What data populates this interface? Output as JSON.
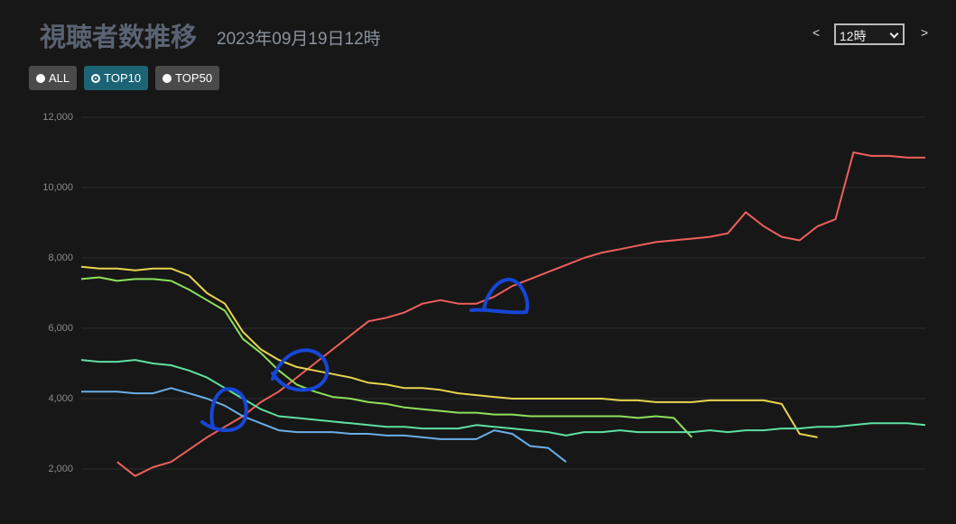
{
  "header": {
    "title": "視聴者数推移",
    "date": "2023年09月19日12時",
    "prev": "<",
    "next": ">",
    "hour_select": "12時"
  },
  "filters": [
    {
      "label": "ALL",
      "selected": false
    },
    {
      "label": "TOP10",
      "selected": true
    },
    {
      "label": "TOP50",
      "selected": false
    }
  ],
  "chart_data": {
    "type": "line",
    "ylim": [
      1000,
      12000
    ],
    "yticks": [
      {
        "value": 2000,
        "label": "2,000"
      },
      {
        "value": 4000,
        "label": "4,000"
      },
      {
        "value": 6000,
        "label": "6,000"
      },
      {
        "value": 8000,
        "label": "8,000"
      },
      {
        "value": 10000,
        "label": "10,000"
      },
      {
        "value": 12000,
        "label": "12,000"
      }
    ],
    "grid": true,
    "series": [
      {
        "color": "#ee5f5b",
        "values": [
          null,
          null,
          2200,
          1800,
          2050,
          2200,
          2550,
          2900,
          3200,
          3500,
          3900,
          4200,
          4600,
          5000,
          5400,
          5800,
          6200,
          6300,
          6450,
          6700,
          6800,
          6700,
          6700,
          6900,
          7200,
          7400,
          7600,
          7800,
          8000,
          8150,
          8250,
          8350,
          8450,
          8500,
          8550,
          8600,
          8700,
          9300,
          8900,
          8600,
          8500,
          8900,
          9100,
          11000,
          10900,
          10900,
          10850,
          10850
        ]
      },
      {
        "color": "#e8d44d",
        "values": [
          7750,
          7700,
          7700,
          7650,
          7700,
          7700,
          7500,
          7000,
          6700,
          5900,
          5400,
          5100,
          4900,
          4800,
          4700,
          4600,
          4450,
          4400,
          4300,
          4300,
          4250,
          4150,
          4100,
          4050,
          4000,
          4000,
          4000,
          4000,
          4000,
          4000,
          3950,
          3950,
          3900,
          3900,
          3900,
          3950,
          3950,
          3950,
          3950,
          3850,
          3000,
          2900,
          null,
          null,
          null,
          null,
          null,
          null
        ]
      },
      {
        "color": "#8de05a",
        "values": [
          7400,
          7450,
          7350,
          7400,
          7400,
          7350,
          7100,
          6800,
          6500,
          5700,
          5300,
          4800,
          4400,
          4200,
          4050,
          4000,
          3900,
          3850,
          3750,
          3700,
          3650,
          3600,
          3600,
          3550,
          3550,
          3500,
          3500,
          3500,
          3500,
          3500,
          3500,
          3450,
          3500,
          3450,
          2900,
          null,
          null,
          null,
          null,
          null,
          null,
          null,
          null,
          null,
          null,
          null,
          null,
          null
        ]
      },
      {
        "color": "#5ee0a0",
        "values": [
          5100,
          5050,
          5050,
          5100,
          5000,
          4950,
          4800,
          4600,
          4300,
          4000,
          3700,
          3500,
          3450,
          3400,
          3350,
          3300,
          3250,
          3200,
          3200,
          3150,
          3150,
          3150,
          3250,
          3200,
          3150,
          3100,
          3050,
          2950,
          3050,
          3050,
          3100,
          3050,
          3050,
          3050,
          3050,
          3100,
          3050,
          3100,
          3100,
          3150,
          3150,
          3200,
          3200,
          3250,
          3300,
          3300,
          3300,
          3250
        ]
      },
      {
        "color": "#6aaee8",
        "values": [
          4200,
          4200,
          4200,
          4150,
          4150,
          4300,
          4150,
          4000,
          3800,
          3500,
          3300,
          3100,
          3050,
          3050,
          3050,
          3000,
          3000,
          2950,
          2950,
          2900,
          2850,
          2850,
          2850,
          3100,
          3000,
          2650,
          2600,
          2200,
          null,
          null,
          null,
          null,
          null,
          null,
          null,
          null,
          null,
          null,
          null,
          null,
          null,
          null,
          null,
          null,
          null,
          null,
          null,
          null
        ]
      }
    ]
  }
}
